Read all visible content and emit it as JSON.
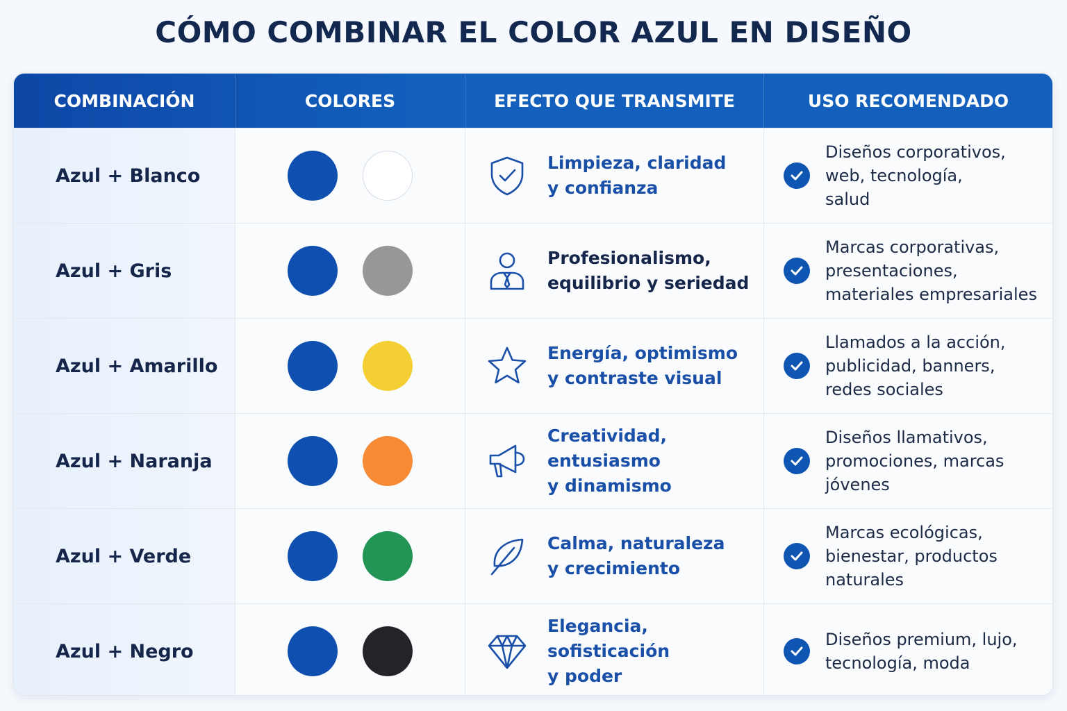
{
  "title": "CÓMO COMBINAR EL COLOR AZUL EN DISEÑO",
  "headers": {
    "combination": "COMBINACIÓN",
    "colors": "COLORES",
    "effect": "EFECTO QUE TRANSMITE",
    "use": "USO RECOMENDADO"
  },
  "colors": {
    "accent": "#0f56b3",
    "effect_text_blue": "#1a4fa8",
    "effect_text_dark": "#16264a"
  },
  "rows": [
    {
      "combination": "Azul + Blanco",
      "color1": "#0e4fb0",
      "color2": "#ffffff",
      "effect_icon": "shield-check-icon",
      "effect": "Limpieza, claridad\ny confianza",
      "effect_color": "#1a4fa8",
      "use": "Diseños corporativos,\nweb, tecnología,\nsalud"
    },
    {
      "combination": "Azul + Gris",
      "color1": "#0e4fb0",
      "color2": "#979797",
      "effect_icon": "businessman-icon",
      "effect": "Profesionalismo,\nequilibrio y seriedad",
      "effect_color": "#16264a",
      "use": "Marcas corporativas,\npresentaciones,\nmateriales empresariales"
    },
    {
      "combination": "Azul + Amarillo",
      "color1": "#0e4fb0",
      "color2": "#f3cf33",
      "effect_icon": "star-icon",
      "effect": "Energía, optimismo\ny contraste visual",
      "effect_color": "#1a4fa8",
      "use": "Llamados a la acción,\npublicidad, banners,\nredes sociales"
    },
    {
      "combination": "Azul + Naranja",
      "color1": "#0e4fb0",
      "color2": "#f68a35",
      "effect_icon": "megaphone-icon",
      "effect": "Creatividad, entusiasmo\ny dinamismo",
      "effect_color": "#1a4fa8",
      "use": "Diseños llamativos,\npromociones, marcas\njóvenes"
    },
    {
      "combination": "Azul + Verde",
      "color1": "#0e4fb0",
      "color2": "#229453",
      "effect_icon": "leaf-icon",
      "effect": "Calma, naturaleza\ny crecimiento",
      "effect_color": "#1a4fa8",
      "use": "Marcas ecológicas,\nbienestar, productos\nnaturales"
    },
    {
      "combination": "Azul + Negro",
      "color1": "#0e4fb0",
      "color2": "#232427",
      "effect_icon": "diamond-icon",
      "effect": "Elegancia, sofisticación\ny poder",
      "effect_color": "#1a4fa8",
      "use": "Diseños premium, lujo,\ntecnología, moda"
    }
  ]
}
